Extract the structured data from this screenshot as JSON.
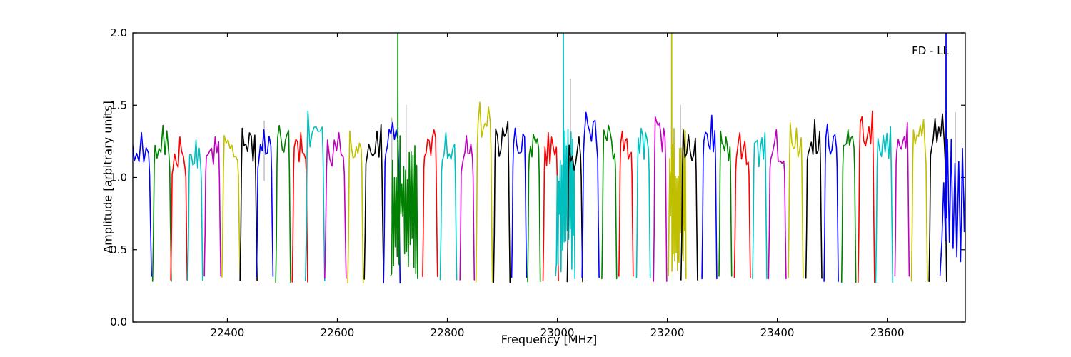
{
  "chart_data": {
    "type": "line",
    "title": "",
    "xlabel": "Frequency [MHz]",
    "ylabel": "Amplitude [arbitrary units]",
    "annotation": "FD - LL",
    "xlim": [
      22228,
      23742
    ],
    "ylim": [
      0.0,
      2.0
    ],
    "xticks": [
      22400,
      22600,
      22800,
      23000,
      23200,
      23400,
      23600
    ],
    "xtick_labels": [
      "22400",
      "22600",
      "22800",
      "23000",
      "23200",
      "23400",
      "23600"
    ],
    "yticks": [
      0.0,
      0.5,
      1.0,
      1.5,
      2.0
    ],
    "ytick_labels": [
      "0.0",
      "0.5",
      "1.0",
      "1.5",
      "2.0"
    ],
    "grid": false,
    "legend_position": "none",
    "baseline_level": 0.3,
    "colors": {
      "b": "#0000ff",
      "g": "#008000",
      "r": "#ff0000",
      "c": "#00bfbf",
      "m": "#bf00bf",
      "y": "#bfbf00",
      "k": "#000000",
      "gray": "#c4c4c4",
      "frame": "#000000"
    },
    "palette_cycle": [
      "b",
      "g",
      "r",
      "c",
      "m",
      "y",
      "k"
    ],
    "segments": [
      {
        "color": "b",
        "f0": 22221,
        "f1": 22262,
        "amp": 1.31
      },
      {
        "color": "g",
        "f0": 22264,
        "f1": 22298,
        "amp": 1.36
      },
      {
        "color": "r",
        "f0": 22297,
        "f1": 22327,
        "amp": 1.28
      },
      {
        "color": "c",
        "f0": 22328,
        "f1": 22355,
        "amp": 1.26
      },
      {
        "color": "m",
        "f0": 22358,
        "f1": 22388,
        "amp": 1.28
      },
      {
        "color": "y",
        "f0": 22390,
        "f1": 22423,
        "amp": 1.29
      },
      {
        "color": "k",
        "f0": 22423,
        "f1": 22454,
        "amp": 1.34
      },
      {
        "color": "b",
        "f0": 22453,
        "f1": 22483,
        "amp": 1.33
      },
      {
        "color": "g",
        "f0": 22488,
        "f1": 22515,
        "amp": 1.36
      },
      {
        "color": "r",
        "f0": 22518,
        "f1": 22546,
        "amp": 1.31
      },
      {
        "color": "c",
        "f0": 22542,
        "f1": 22577,
        "amp": 1.46
      },
      {
        "color": "m",
        "f0": 22577,
        "f1": 22616,
        "amp": 1.31
      },
      {
        "color": "y",
        "f0": 22619,
        "f1": 22647,
        "amp": 1.32
      },
      {
        "color": "k",
        "f0": 22649,
        "f1": 22684,
        "amp": 1.37
      },
      {
        "color": "b",
        "f0": 22684,
        "f1": 22714,
        "amp": 1.38
      },
      {
        "color": "g",
        "f0": 22697,
        "f1": 22746,
        "amp": 1.32,
        "noisy": true,
        "spike": 22710,
        "nstep": 1.7
      },
      {
        "color": "r",
        "f0": 22755,
        "f1": 22782,
        "amp": 1.33
      },
      {
        "color": "c",
        "f0": 22787,
        "f1": 22817,
        "amp": 1.31
      },
      {
        "color": "m",
        "f0": 22823,
        "f1": 22849,
        "amp": 1.29
      },
      {
        "color": "y",
        "f0": 22852,
        "f1": 22882,
        "amp": 1.52
      },
      {
        "color": "k",
        "f0": 22884,
        "f1": 22914,
        "amp": 1.39
      },
      {
        "color": "b",
        "f0": 22917,
        "f1": 22944,
        "amp": 1.34
      },
      {
        "color": "g",
        "f0": 22946,
        "f1": 22969,
        "amp": 1.3
      },
      {
        "color": "r",
        "f0": 22974,
        "f1": 23002,
        "amp": 1.31
      },
      {
        "color": "c",
        "f0": 22997,
        "f1": 23032,
        "amp": 1.3,
        "noisy": true,
        "spike": 23011,
        "nstep": 1.4
      },
      {
        "color": "k",
        "f0": 23018,
        "f1": 23046,
        "amp": 1.28
      },
      {
        "color": "b",
        "f0": 23045,
        "f1": 23076,
        "amp": 1.45
      },
      {
        "color": "g",
        "f0": 23081,
        "f1": 23108,
        "amp": 1.36
      },
      {
        "color": "r",
        "f0": 23112,
        "f1": 23138,
        "amp": 1.32
      },
      {
        "color": "c",
        "f0": 23144,
        "f1": 23169,
        "amp": 1.34
      },
      {
        "color": "m",
        "f0": 23175,
        "f1": 23199,
        "amp": 1.42
      },
      {
        "color": "y",
        "f0": 23202,
        "f1": 23234,
        "amp": 1.3,
        "noisy": true,
        "spike": 23208,
        "nstep": 1.3
      },
      {
        "color": "k",
        "f0": 23225,
        "f1": 23255,
        "amp": 1.33
      },
      {
        "color": "b",
        "f0": 23263,
        "f1": 23290,
        "amp": 1.43
      },
      {
        "color": "g",
        "f0": 23294,
        "f1": 23317,
        "amp": 1.32
      },
      {
        "color": "r",
        "f0": 23322,
        "f1": 23351,
        "amp": 1.31
      },
      {
        "color": "c",
        "f0": 23355,
        "f1": 23381,
        "amp": 1.31
      },
      {
        "color": "m",
        "f0": 23384,
        "f1": 23416,
        "amp": 1.33
      },
      {
        "color": "y",
        "f0": 23420,
        "f1": 23447,
        "amp": 1.38
      },
      {
        "color": "k",
        "f0": 23452,
        "f1": 23481,
        "amp": 1.4
      },
      {
        "color": "b",
        "f0": 23485,
        "f1": 23511,
        "amp": 1.37
      },
      {
        "color": "g",
        "f0": 23517,
        "f1": 23543,
        "amp": 1.33
      },
      {
        "color": "r",
        "f0": 23547,
        "f1": 23577,
        "amp": 1.46
      },
      {
        "color": "c",
        "f0": 23579,
        "f1": 23610,
        "amp": 1.35
      },
      {
        "color": "m",
        "f0": 23614,
        "f1": 23640,
        "amp": 1.38
      },
      {
        "color": "y",
        "f0": 23644,
        "f1": 23673,
        "amp": 1.4
      },
      {
        "color": "k",
        "f0": 23676,
        "f1": 23708,
        "amp": 1.44
      },
      {
        "color": "b",
        "f0": 23696,
        "f1": 23747,
        "amp": 1.32,
        "noisy": true,
        "spike": 23707,
        "nstep": 3.4
      }
    ],
    "gray_spikes": [
      {
        "f": 22467,
        "top": 1.39,
        "bottom": 0.98
      },
      {
        "f": 22699,
        "top": 1.41,
        "bottom": 0.75
      },
      {
        "f": 22725,
        "top": 1.5,
        "bottom": 0.7
      },
      {
        "f": 23024,
        "top": 1.68,
        "bottom": 1.05
      },
      {
        "f": 23224,
        "top": 1.5,
        "bottom": 0.72
      },
      {
        "f": 23724,
        "top": 1.45,
        "bottom": 0.85
      }
    ]
  }
}
